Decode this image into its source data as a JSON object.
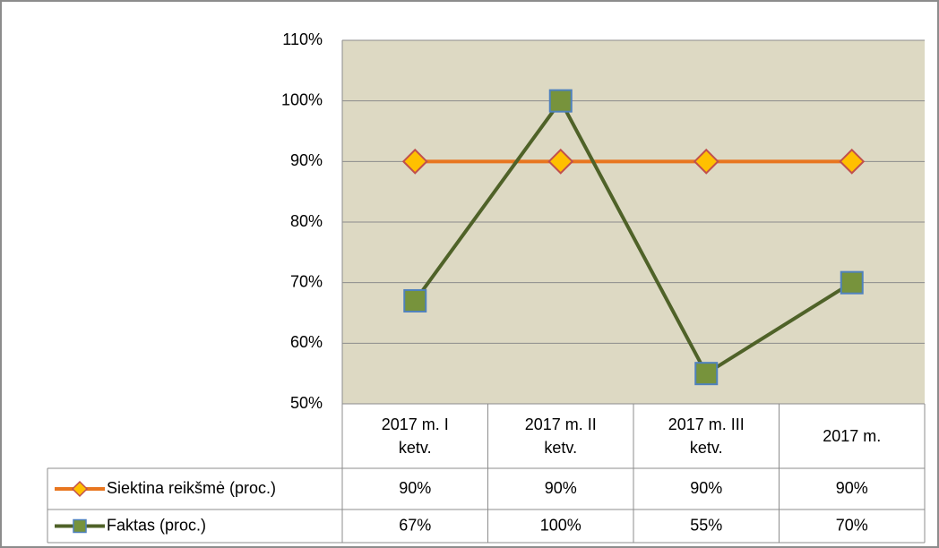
{
  "chart_data": {
    "type": "line",
    "categories": [
      "2017 m. I ketv.",
      "2017 m. II ketv.",
      "2017 m. III ketv.",
      "2017 m."
    ],
    "series": [
      {
        "name": "Siektina reikšmė (proc.)",
        "color": "#e8761f",
        "marker": "diamond",
        "marker_fill": "#ffc000",
        "marker_stroke": "#c0504d",
        "values": [
          90,
          90,
          90,
          90
        ],
        "value_labels": [
          "90%",
          "90%",
          "90%",
          "90%"
        ]
      },
      {
        "name": "Faktas (proc.)",
        "color": "#4f6228",
        "marker": "square",
        "marker_fill": "#77933c",
        "marker_stroke": "#4f81bd",
        "values": [
          67,
          100,
          55,
          70
        ],
        "value_labels": [
          "67%",
          "100%",
          "55%",
          "70%"
        ]
      }
    ],
    "ylim": [
      50,
      110
    ],
    "yticks": [
      {
        "value": 50,
        "label": "50%"
      },
      {
        "value": 60,
        "label": "60%"
      },
      {
        "value": 70,
        "label": "70%"
      },
      {
        "value": 80,
        "label": "80%"
      },
      {
        "value": 90,
        "label": "90%"
      },
      {
        "value": 100,
        "label": "100%"
      },
      {
        "value": 110,
        "label": "110%"
      }
    ],
    "grid": true,
    "data_table": true
  }
}
